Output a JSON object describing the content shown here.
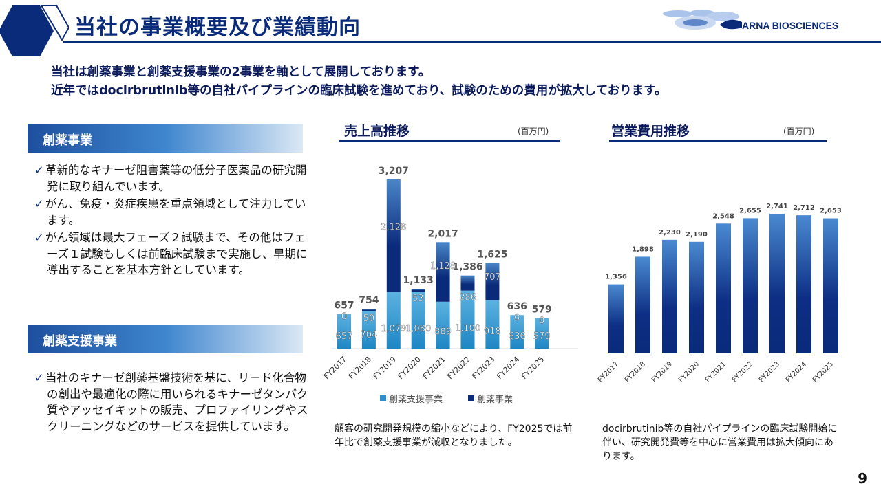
{
  "header": {
    "title": "当社の事業概要及び業績動向",
    "logo_text": "CARNA BIOSCIENCES"
  },
  "lead": [
    "当社は創薬事業と創薬支援事業の2事業を軸として展開しております。",
    "近年ではdocirbrutinib等の自社パイプラインの臨床試験を進めており、試験のための費用が拡大しております。"
  ],
  "section1": {
    "label": "創薬事業",
    "bullets": [
      "革新的なキナーゼ阻害薬等の低分子医薬品の研究開発に取り組んでいます。",
      "がん、免疫・炎症疾患を重点領域として注力しています。",
      "がん領域は最大フェーズ２試験まで、その他はフェーズ１試験もしくは前臨床試験まで実施し、早期に導出することを基本方針としています。"
    ]
  },
  "section2": {
    "label": "創薬支援事業",
    "bullets": [
      "当社のキナーゼ創薬基盤技術を基に、リード化合物の創出や最適化の際に用いられるキナーゼタンパク質やアッセイキットの販売、プロファイリングやスクリーニングなどのサービスを提供しています。"
    ]
  },
  "notes": {
    "sales": "顧客の研究開発規模の縮小などにより、FY2025では前年比で創薬支援事業が減収となりました。",
    "expenses": "docirbrutinib等の自社パイプラインの臨床試験開始に伴い、研究開発費等を中心に営業費用は拡大傾向にあります。"
  },
  "page_number": "9",
  "colors": {
    "navy": "#0a2a7a",
    "support": "#2a8fcc",
    "drug": "#0a2a7a"
  },
  "chart_data": [
    {
      "type": "bar",
      "stacked": true,
      "title": "売上高推移",
      "unit": "(百万円)",
      "categories": [
        "FY2017",
        "FY2018",
        "FY2019",
        "FY2020",
        "FY2021",
        "FY2022",
        "FY2023",
        "FY2024",
        "FY2025"
      ],
      "series": [
        {
          "name": "創薬支援事業",
          "values": [
            657,
            704,
            1079,
            1080,
            889,
            1100,
            918,
            636,
            579
          ]
        },
        {
          "name": "創薬事業",
          "values": [
            0,
            50,
            2128,
            53,
            1128,
            286,
            707,
            0,
            0
          ]
        }
      ],
      "totals": [
        657,
        754,
        3207,
        1133,
        2017,
        1386,
        1625,
        636,
        579
      ],
      "legend": "bottom",
      "grid": false
    },
    {
      "type": "bar",
      "title": "営業費用推移",
      "unit": "(百万円)",
      "categories": [
        "FY2017",
        "FY2018",
        "FY2019",
        "FY2020",
        "FY2021",
        "FY2022",
        "FY2023",
        "FY2024",
        "FY2025"
      ],
      "values": [
        1356,
        1898,
        2230,
        2190,
        2548,
        2655,
        2741,
        2712,
        2653
      ],
      "grid": false
    }
  ]
}
